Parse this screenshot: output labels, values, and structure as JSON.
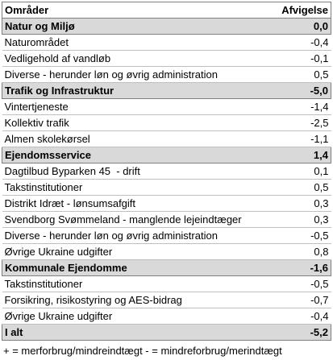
{
  "table": {
    "header": [
      "Områder",
      "Afvigelse"
    ],
    "sections": [
      {
        "name": "Natur og Miljø",
        "value": "0,0",
        "rows": [
          [
            "Naturområdet",
            "-0,4"
          ],
          [
            "Vedligehold af vandløb",
            "-0,1"
          ],
          [
            "Diverse - herunder løn og øvrig administration",
            "0,5"
          ]
        ]
      },
      {
        "name": "Trafik og Infrastruktur",
        "value": "-5,0",
        "rows": [
          [
            "Vintertjeneste",
            "-1,4"
          ],
          [
            "Kollektiv trafik",
            "-2,5"
          ],
          [
            "Almen skolekørsel",
            "-1,1"
          ]
        ]
      },
      {
        "name": "Ejendomsservice",
        "value": "1,4",
        "rows": [
          [
            "Dagtilbud Byparken 45  - drift",
            "0,1"
          ],
          [
            "Takstinstitutioner",
            "0,5"
          ],
          [
            "Distrikt Idræt - lønsumsafgift",
            "0,3"
          ],
          [
            "Svendborg Svømmeland - manglende lejeindtæger",
            "0,3"
          ],
          [
            "Diverse - herunder løn og øvrig administration",
            "-0,5"
          ],
          [
            "Øvrige Ukraine udgifter",
            "0,8"
          ]
        ]
      },
      {
        "name": "Kommunale Ejendomme",
        "value": "-1,6",
        "rows": [
          [
            "Takstinstitutioner",
            "-0,5"
          ],
          [
            "Forsikring, risikostyring og AES-bidrag",
            "-0,7"
          ],
          [
            "Øvrige Ukraine udgifter",
            "-0,4"
          ]
        ]
      }
    ],
    "total": [
      "I alt",
      "-5,2"
    ]
  },
  "footnote": "+ = merforbrug/mindreindtægt - = mindreforbrug/merindtægt"
}
